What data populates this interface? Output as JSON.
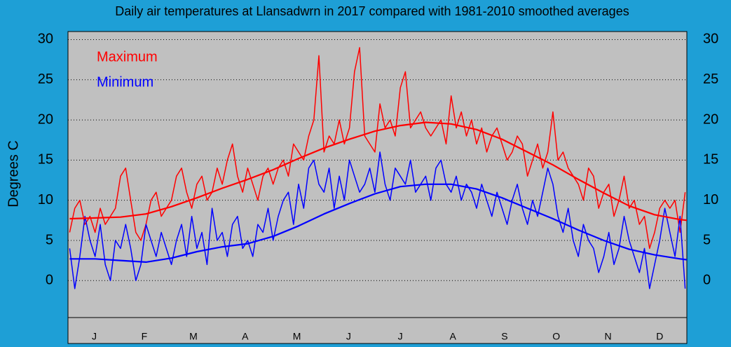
{
  "chart_data": {
    "type": "line",
    "title": "Daily air temperatures at Llansadwrn in 2017 compared with 1981-2010 smoothed averages",
    "y_label": "Degrees  C",
    "xlim": [
      0,
      365
    ],
    "ylim": [
      -4.6,
      31
    ],
    "yticks": [
      0,
      5,
      10,
      15,
      20,
      25,
      30
    ],
    "xticks": [
      {
        "value": 15.5,
        "label": "J"
      },
      {
        "value": 45,
        "label": "F"
      },
      {
        "value": 74,
        "label": "M"
      },
      {
        "value": 104.5,
        "label": "A"
      },
      {
        "value": 135,
        "label": "M"
      },
      {
        "value": 165.5,
        "label": "J"
      },
      {
        "value": 196,
        "label": "J"
      },
      {
        "value": 227,
        "label": "A"
      },
      {
        "value": 257.5,
        "label": "S"
      },
      {
        "value": 288,
        "label": "O"
      },
      {
        "value": 318.5,
        "label": "N"
      },
      {
        "value": 349,
        "label": "D"
      }
    ],
    "grid": true,
    "series": [
      {
        "name": "Maximum",
        "color": "#ff0000",
        "x": [
          1,
          4,
          7,
          10,
          13,
          16,
          19,
          22,
          25,
          28,
          31,
          34,
          37,
          40,
          43,
          46,
          49,
          52,
          55,
          58,
          61,
          64,
          67,
          70,
          73,
          76,
          79,
          82,
          85,
          88,
          91,
          94,
          97,
          100,
          103,
          106,
          109,
          112,
          115,
          118,
          121,
          124,
          127,
          130,
          133,
          136,
          139,
          142,
          145,
          148,
          151,
          154,
          157,
          160,
          163,
          166,
          169,
          172,
          175,
          178,
          181,
          184,
          187,
          190,
          193,
          196,
          199,
          202,
          205,
          208,
          211,
          214,
          217,
          220,
          223,
          226,
          229,
          232,
          235,
          238,
          241,
          244,
          247,
          250,
          253,
          256,
          259,
          262,
          265,
          268,
          271,
          274,
          277,
          280,
          283,
          286,
          289,
          292,
          295,
          298,
          301,
          304,
          307,
          310,
          313,
          316,
          319,
          322,
          325,
          328,
          331,
          334,
          337,
          340,
          343,
          346,
          349,
          352,
          355,
          358,
          361,
          364
        ],
        "values": [
          6,
          9,
          10,
          7,
          8,
          6,
          9,
          7,
          8,
          9,
          13,
          14,
          10,
          6,
          5,
          7,
          10,
          11,
          8,
          9,
          10,
          13,
          14,
          11,
          9,
          12,
          13,
          10,
          11,
          14,
          12,
          15,
          17,
          13,
          11,
          14,
          12,
          10,
          13,
          14,
          12,
          14,
          15,
          13,
          17,
          16,
          15,
          18,
          20,
          28,
          16,
          18,
          17,
          20,
          17,
          19,
          26,
          29,
          18,
          17,
          16,
          22,
          19,
          20,
          18,
          24,
          26,
          19,
          20,
          21,
          19,
          18,
          19,
          20,
          17,
          23,
          19,
          21,
          18,
          20,
          17,
          19,
          16,
          18,
          19,
          17,
          15,
          16,
          18,
          17,
          13,
          15,
          17,
          14,
          16,
          21,
          15,
          16,
          14,
          13,
          12,
          10,
          14,
          13,
          9,
          11,
          12,
          8,
          10,
          13,
          9,
          10,
          7,
          8,
          4,
          6,
          9,
          10,
          9,
          10,
          6,
          11
        ]
      },
      {
        "name": "Minimum",
        "color": "#0000ff",
        "x": [
          1,
          4,
          7,
          10,
          13,
          16,
          19,
          22,
          25,
          28,
          31,
          34,
          37,
          40,
          43,
          46,
          49,
          52,
          55,
          58,
          61,
          64,
          67,
          70,
          73,
          76,
          79,
          82,
          85,
          88,
          91,
          94,
          97,
          100,
          103,
          106,
          109,
          112,
          115,
          118,
          121,
          124,
          127,
          130,
          133,
          136,
          139,
          142,
          145,
          148,
          151,
          154,
          157,
          160,
          163,
          166,
          169,
          172,
          175,
          178,
          181,
          184,
          187,
          190,
          193,
          196,
          199,
          202,
          205,
          208,
          211,
          214,
          217,
          220,
          223,
          226,
          229,
          232,
          235,
          238,
          241,
          244,
          247,
          250,
          253,
          256,
          259,
          262,
          265,
          268,
          271,
          274,
          277,
          280,
          283,
          286,
          289,
          292,
          295,
          298,
          301,
          304,
          307,
          310,
          313,
          316,
          319,
          322,
          325,
          328,
          331,
          334,
          337,
          340,
          343,
          346,
          349,
          352,
          355,
          358,
          361,
          364
        ],
        "values": [
          4,
          -1,
          3,
          8,
          5,
          3,
          7,
          2,
          0,
          5,
          4,
          7,
          4,
          0,
          2,
          7,
          5,
          3,
          6,
          4,
          2,
          5,
          7,
          3,
          8,
          4,
          6,
          2,
          9,
          5,
          6,
          3,
          7,
          8,
          4,
          5,
          3,
          7,
          6,
          9,
          5,
          8,
          10,
          11,
          7,
          12,
          9,
          14,
          15,
          12,
          11,
          14,
          9,
          13,
          10,
          15,
          13,
          11,
          12,
          14,
          11,
          16,
          12,
          10,
          14,
          13,
          12,
          15,
          11,
          12,
          13,
          10,
          14,
          15,
          12,
          11,
          13,
          10,
          12,
          11,
          9,
          12,
          10,
          8,
          11,
          9,
          7,
          10,
          12,
          9,
          7,
          10,
          8,
          11,
          14,
          12,
          8,
          6,
          9,
          5,
          3,
          7,
          5,
          4,
          1,
          3,
          6,
          2,
          4,
          8,
          5,
          3,
          1,
          4,
          -1,
          2,
          5,
          9,
          6,
          3,
          8,
          -1
        ]
      },
      {
        "color": "#ff0000",
        "smooth": true,
        "x": [
          1,
          16,
          31,
          46,
          61,
          76,
          91,
          106,
          121,
          136,
          151,
          166,
          181,
          196,
          211,
          226,
          241,
          256,
          271,
          286,
          301,
          316,
          331,
          346,
          361,
          365
        ],
        "values": [
          7.7,
          7.8,
          7.9,
          8.3,
          9.2,
          10.3,
          11.5,
          12.6,
          13.8,
          15.2,
          16.5,
          17.6,
          18.6,
          19.3,
          19.7,
          19.5,
          18.8,
          17.6,
          16.0,
          14.4,
          12.6,
          10.9,
          9.3,
          8.2,
          7.6,
          7.5
        ]
      },
      {
        "color": "#0000ff",
        "smooth": true,
        "x": [
          1,
          16,
          31,
          46,
          61,
          76,
          91,
          106,
          121,
          136,
          151,
          166,
          181,
          196,
          211,
          226,
          241,
          256,
          271,
          286,
          301,
          316,
          331,
          346,
          361,
          365
        ],
        "values": [
          2.7,
          2.7,
          2.5,
          2.3,
          2.8,
          3.6,
          4.2,
          4.6,
          5.5,
          6.8,
          8.3,
          9.6,
          10.8,
          11.7,
          12.0,
          12.0,
          11.4,
          10.3,
          9.0,
          7.7,
          6.3,
          5.0,
          3.9,
          3.2,
          2.7,
          2.6
        ]
      }
    ]
  }
}
